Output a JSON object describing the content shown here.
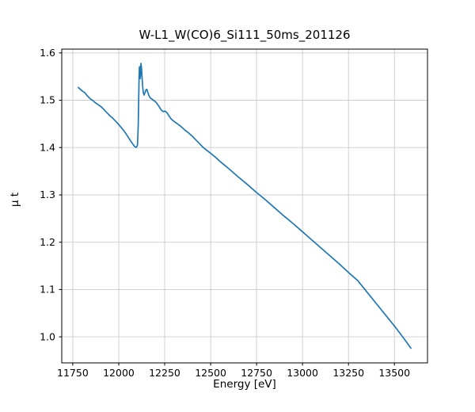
{
  "chart_data": {
    "type": "line",
    "title": "W-L1_W(CO)6_Si111_50ms_201126",
    "xlabel": "Energy [eV]",
    "ylabel": "μ t",
    "xlim": [
      11690,
      13680
    ],
    "ylim": [
      0.945,
      1.608
    ],
    "xticks": [
      11750,
      12000,
      12250,
      12500,
      12750,
      13000,
      13250,
      13500
    ],
    "yticks": [
      1.0,
      1.1,
      1.2,
      1.3,
      1.4,
      1.5,
      1.6
    ],
    "grid": true,
    "legend": "none",
    "line_color": "#1f77b4",
    "series": [
      {
        "name": "mu_t",
        "points": [
          [
            11780,
            1.527
          ],
          [
            11800,
            1.52
          ],
          [
            11815,
            1.516
          ],
          [
            11830,
            1.509
          ],
          [
            11845,
            1.503
          ],
          [
            11860,
            1.499
          ],
          [
            11875,
            1.494
          ],
          [
            11890,
            1.49
          ],
          [
            11905,
            1.486
          ],
          [
            11920,
            1.48
          ],
          [
            11935,
            1.474
          ],
          [
            11950,
            1.468
          ],
          [
            11965,
            1.463
          ],
          [
            11980,
            1.457
          ],
          [
            11995,
            1.451
          ],
          [
            12010,
            1.444
          ],
          [
            12025,
            1.437
          ],
          [
            12040,
            1.429
          ],
          [
            12055,
            1.42
          ],
          [
            12070,
            1.411
          ],
          [
            12085,
            1.403
          ],
          [
            12095,
            1.4
          ],
          [
            12102,
            1.405
          ],
          [
            12106,
            1.445
          ],
          [
            12109,
            1.51
          ],
          [
            12111,
            1.555
          ],
          [
            12113,
            1.571
          ],
          [
            12115,
            1.557
          ],
          [
            12117,
            1.546
          ],
          [
            12119,
            1.556
          ],
          [
            12121,
            1.578
          ],
          [
            12124,
            1.568
          ],
          [
            12127,
            1.548
          ],
          [
            12130,
            1.53
          ],
          [
            12134,
            1.516
          ],
          [
            12138,
            1.511
          ],
          [
            12143,
            1.516
          ],
          [
            12148,
            1.522
          ],
          [
            12153,
            1.523
          ],
          [
            12158,
            1.517
          ],
          [
            12164,
            1.51
          ],
          [
            12172,
            1.505
          ],
          [
            12182,
            1.502
          ],
          [
            12192,
            1.499
          ],
          [
            12202,
            1.496
          ],
          [
            12212,
            1.491
          ],
          [
            12222,
            1.485
          ],
          [
            12232,
            1.479
          ],
          [
            12242,
            1.476
          ],
          [
            12252,
            1.477
          ],
          [
            12262,
            1.474
          ],
          [
            12272,
            1.468
          ],
          [
            12282,
            1.462
          ],
          [
            12292,
            1.458
          ],
          [
            12302,
            1.455
          ],
          [
            12320,
            1.45
          ],
          [
            12340,
            1.444
          ],
          [
            12360,
            1.437
          ],
          [
            12380,
            1.431
          ],
          [
            12400,
            1.424
          ],
          [
            12420,
            1.416
          ],
          [
            12440,
            1.408
          ],
          [
            12460,
            1.4
          ],
          [
            12480,
            1.394
          ],
          [
            12500,
            1.388
          ],
          [
            12525,
            1.38
          ],
          [
            12550,
            1.371
          ],
          [
            12575,
            1.363
          ],
          [
            12600,
            1.355
          ],
          [
            12650,
            1.338
          ],
          [
            12700,
            1.322
          ],
          [
            12750,
            1.305
          ],
          [
            12800,
            1.289
          ],
          [
            12850,
            1.272
          ],
          [
            12900,
            1.255
          ],
          [
            12950,
            1.239
          ],
          [
            13000,
            1.222
          ],
          [
            13050,
            1.205
          ],
          [
            13100,
            1.188
          ],
          [
            13150,
            1.171
          ],
          [
            13200,
            1.154
          ],
          [
            13250,
            1.136
          ],
          [
            13300,
            1.119
          ],
          [
            13350,
            1.095
          ],
          [
            13400,
            1.071
          ],
          [
            13450,
            1.047
          ],
          [
            13500,
            1.023
          ],
          [
            13545,
            1.0
          ],
          [
            13590,
            0.976
          ]
        ]
      }
    ]
  }
}
